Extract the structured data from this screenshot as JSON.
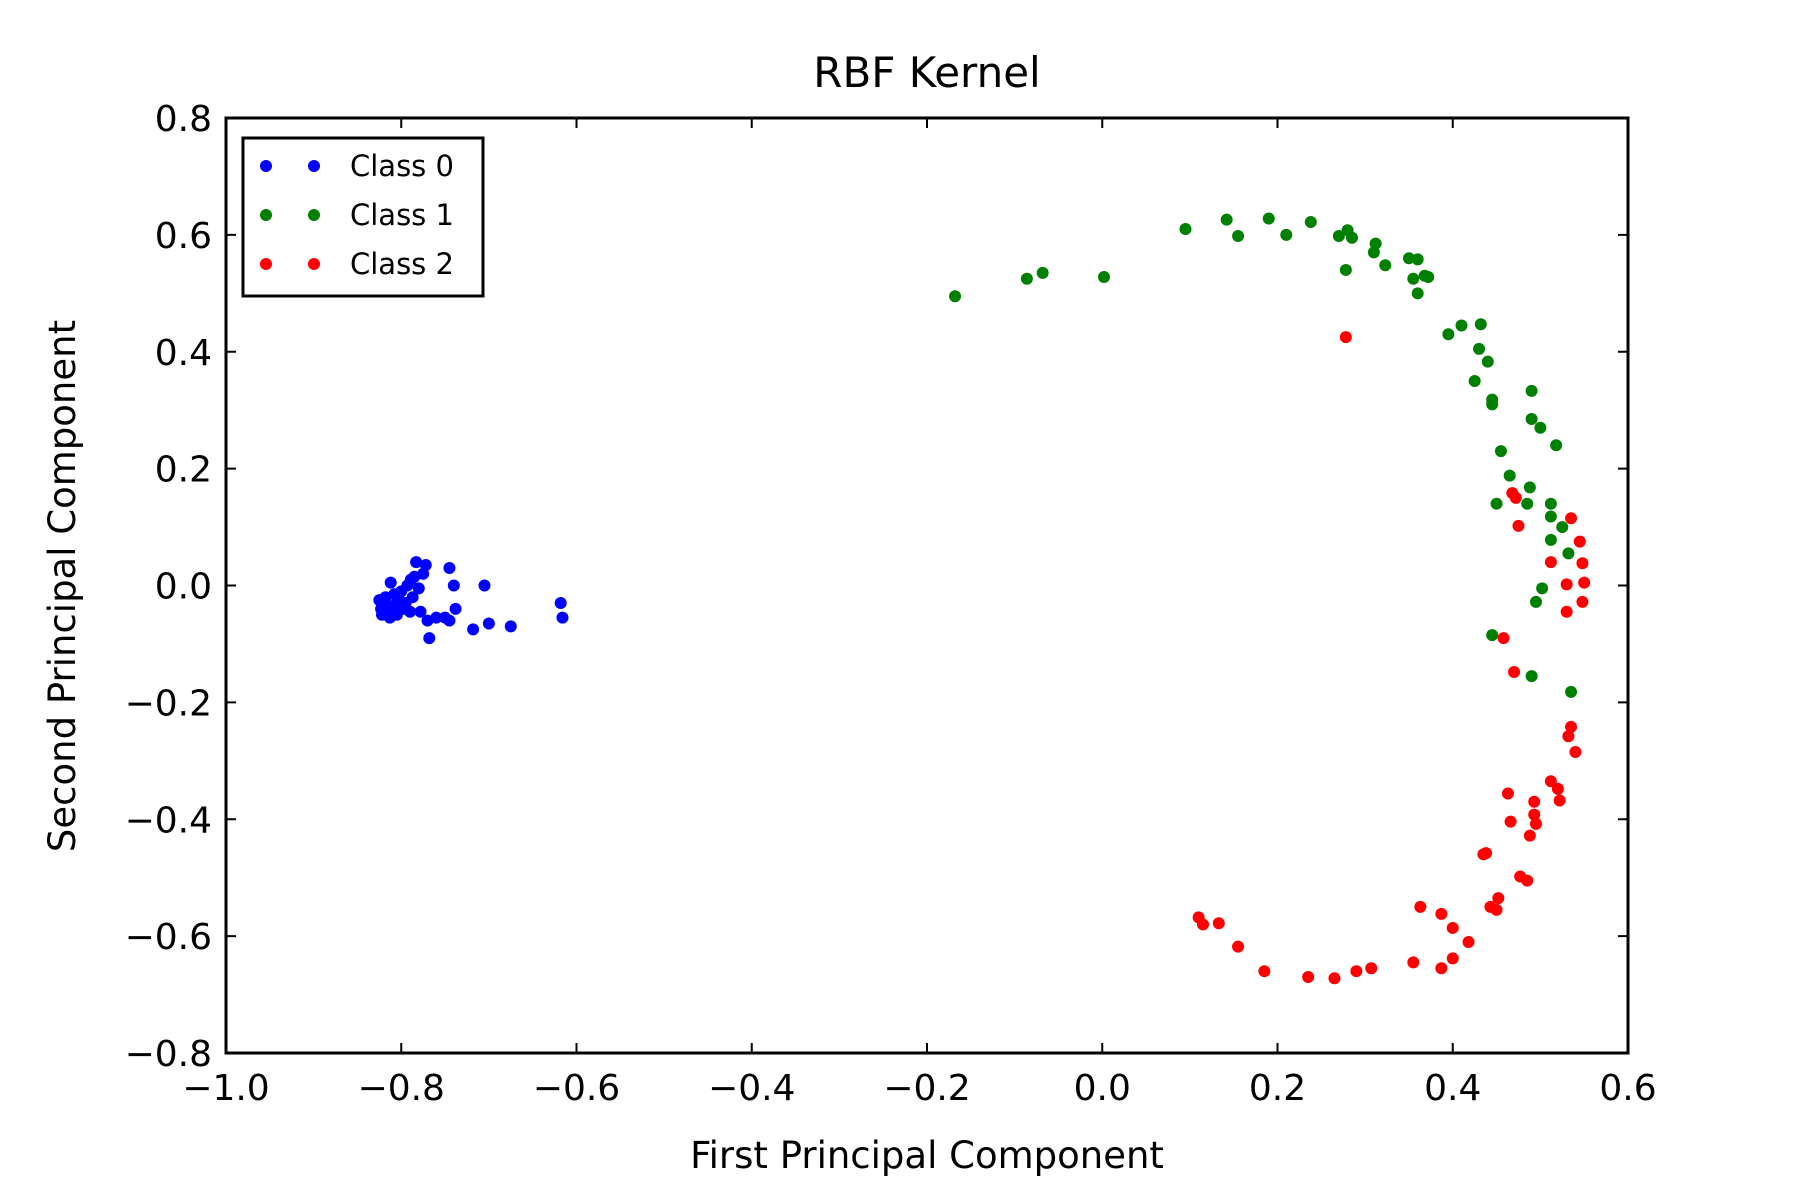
{
  "chart_data": {
    "type": "scatter",
    "title": "RBF Kernel",
    "xlabel": "First Principal Component",
    "ylabel": "Second Principal Component",
    "xlim": [
      -1.0,
      0.6
    ],
    "ylim": [
      -0.8,
      0.8
    ],
    "x_ticks": [
      -1.0,
      -0.8,
      -0.6,
      -0.4,
      -0.2,
      0.0,
      0.2,
      0.4,
      0.6
    ],
    "y_ticks": [
      -0.8,
      -0.6,
      -0.4,
      -0.2,
      0.0,
      0.2,
      0.4,
      0.6,
      0.8
    ],
    "x_tick_labels": [
      "−1.0",
      "−0.8",
      "−0.6",
      "−0.4",
      "−0.2",
      "0.0",
      "0.2",
      "0.4",
      "0.6"
    ],
    "y_tick_labels": [
      "−0.8",
      "−0.6",
      "−0.4",
      "−0.2",
      "0.0",
      "0.2",
      "0.4",
      "0.6",
      "0.8"
    ],
    "grid": false,
    "legend_position": "top-left",
    "series": [
      {
        "name": "Class 0",
        "color": "#0000ff",
        "points": [
          [
            -0.825,
            -0.025
          ],
          [
            -0.823,
            -0.04
          ],
          [
            -0.822,
            -0.05
          ],
          [
            -0.82,
            -0.03
          ],
          [
            -0.818,
            -0.02
          ],
          [
            -0.815,
            -0.045
          ],
          [
            -0.813,
            -0.055
          ],
          [
            -0.812,
            0.005
          ],
          [
            -0.81,
            -0.035
          ],
          [
            -0.808,
            -0.015
          ],
          [
            -0.805,
            -0.05
          ],
          [
            -0.803,
            -0.025
          ],
          [
            -0.8,
            -0.01
          ],
          [
            -0.798,
            -0.04
          ],
          [
            -0.795,
            -0.03
          ],
          [
            -0.793,
            0.0
          ],
          [
            -0.79,
            -0.045
          ],
          [
            -0.789,
            0.01
          ],
          [
            -0.787,
            -0.02
          ],
          [
            -0.785,
            0.015
          ],
          [
            -0.783,
            0.04
          ],
          [
            -0.78,
            -0.005
          ],
          [
            -0.778,
            -0.045
          ],
          [
            -0.775,
            0.02
          ],
          [
            -0.772,
            0.035
          ],
          [
            -0.77,
            -0.06
          ],
          [
            -0.768,
            -0.09
          ],
          [
            -0.76,
            -0.055
          ],
          [
            -0.75,
            -0.055
          ],
          [
            -0.745,
            -0.06
          ],
          [
            -0.745,
            0.03
          ],
          [
            -0.74,
            0.0
          ],
          [
            -0.738,
            -0.04
          ],
          [
            -0.718,
            -0.075
          ],
          [
            -0.705,
            0.0
          ],
          [
            -0.7,
            -0.065
          ],
          [
            -0.675,
            -0.07
          ],
          [
            -0.618,
            -0.03
          ],
          [
            -0.616,
            -0.055
          ]
        ]
      },
      {
        "name": "Class 1",
        "color": "#008000",
        "points": [
          [
            -0.168,
            0.495
          ],
          [
            -0.086,
            0.525
          ],
          [
            -0.068,
            0.535
          ],
          [
            0.002,
            0.528
          ],
          [
            0.095,
            0.61
          ],
          [
            0.142,
            0.626
          ],
          [
            0.155,
            0.598
          ],
          [
            0.19,
            0.628
          ],
          [
            0.21,
            0.6
          ],
          [
            0.238,
            0.622
          ],
          [
            0.27,
            0.598
          ],
          [
            0.28,
            0.608
          ],
          [
            0.285,
            0.595
          ],
          [
            0.278,
            0.54
          ],
          [
            0.31,
            0.57
          ],
          [
            0.312,
            0.585
          ],
          [
            0.323,
            0.548
          ],
          [
            0.35,
            0.56
          ],
          [
            0.36,
            0.558
          ],
          [
            0.355,
            0.525
          ],
          [
            0.368,
            0.53
          ],
          [
            0.372,
            0.528
          ],
          [
            0.36,
            0.5
          ],
          [
            0.395,
            0.43
          ],
          [
            0.41,
            0.445
          ],
          [
            0.432,
            0.447
          ],
          [
            0.43,
            0.405
          ],
          [
            0.44,
            0.383
          ],
          [
            0.425,
            0.35
          ],
          [
            0.445,
            0.318
          ],
          [
            0.445,
            0.31
          ],
          [
            0.49,
            0.333
          ],
          [
            0.49,
            0.285
          ],
          [
            0.5,
            0.27
          ],
          [
            0.518,
            0.24
          ],
          [
            0.455,
            0.23
          ],
          [
            0.465,
            0.188
          ],
          [
            0.488,
            0.168
          ],
          [
            0.485,
            0.14
          ],
          [
            0.45,
            0.14
          ],
          [
            0.512,
            0.14
          ],
          [
            0.512,
            0.118
          ],
          [
            0.525,
            0.1
          ],
          [
            0.512,
            0.078
          ],
          [
            0.532,
            0.055
          ],
          [
            0.502,
            -0.005
          ],
          [
            0.495,
            -0.028
          ],
          [
            0.445,
            -0.085
          ],
          [
            0.49,
            -0.155
          ],
          [
            0.535,
            -0.182
          ]
        ]
      },
      {
        "name": "Class 2",
        "color": "#ff0000",
        "points": [
          [
            0.278,
            0.425
          ],
          [
            0.468,
            0.158
          ],
          [
            0.472,
            0.15
          ],
          [
            0.475,
            0.102
          ],
          [
            0.535,
            0.115
          ],
          [
            0.545,
            0.075
          ],
          [
            0.512,
            0.04
          ],
          [
            0.548,
            0.038
          ],
          [
            0.53,
            0.002
          ],
          [
            0.55,
            0.005
          ],
          [
            0.548,
            -0.028
          ],
          [
            0.53,
            -0.045
          ],
          [
            0.458,
            -0.09
          ],
          [
            0.47,
            -0.148
          ],
          [
            0.535,
            -0.242
          ],
          [
            0.532,
            -0.258
          ],
          [
            0.54,
            -0.285
          ],
          [
            0.512,
            -0.335
          ],
          [
            0.52,
            -0.348
          ],
          [
            0.522,
            -0.368
          ],
          [
            0.463,
            -0.356
          ],
          [
            0.493,
            -0.37
          ],
          [
            0.493,
            -0.392
          ],
          [
            0.495,
            -0.408
          ],
          [
            0.466,
            -0.404
          ],
          [
            0.488,
            -0.428
          ],
          [
            0.435,
            -0.46
          ],
          [
            0.438,
            -0.458
          ],
          [
            0.477,
            -0.498
          ],
          [
            0.485,
            -0.505
          ],
          [
            0.452,
            -0.535
          ],
          [
            0.443,
            -0.55
          ],
          [
            0.45,
            -0.555
          ],
          [
            0.363,
            -0.55
          ],
          [
            0.387,
            -0.562
          ],
          [
            0.4,
            -0.586
          ],
          [
            0.418,
            -0.61
          ],
          [
            0.11,
            -0.568
          ],
          [
            0.115,
            -0.58
          ],
          [
            0.133,
            -0.578
          ],
          [
            0.155,
            -0.618
          ],
          [
            0.185,
            -0.66
          ],
          [
            0.235,
            -0.67
          ],
          [
            0.265,
            -0.672
          ],
          [
            0.29,
            -0.66
          ],
          [
            0.307,
            -0.655
          ],
          [
            0.355,
            -0.645
          ],
          [
            0.4,
            -0.638
          ],
          [
            0.387,
            -0.655
          ]
        ]
      }
    ]
  }
}
